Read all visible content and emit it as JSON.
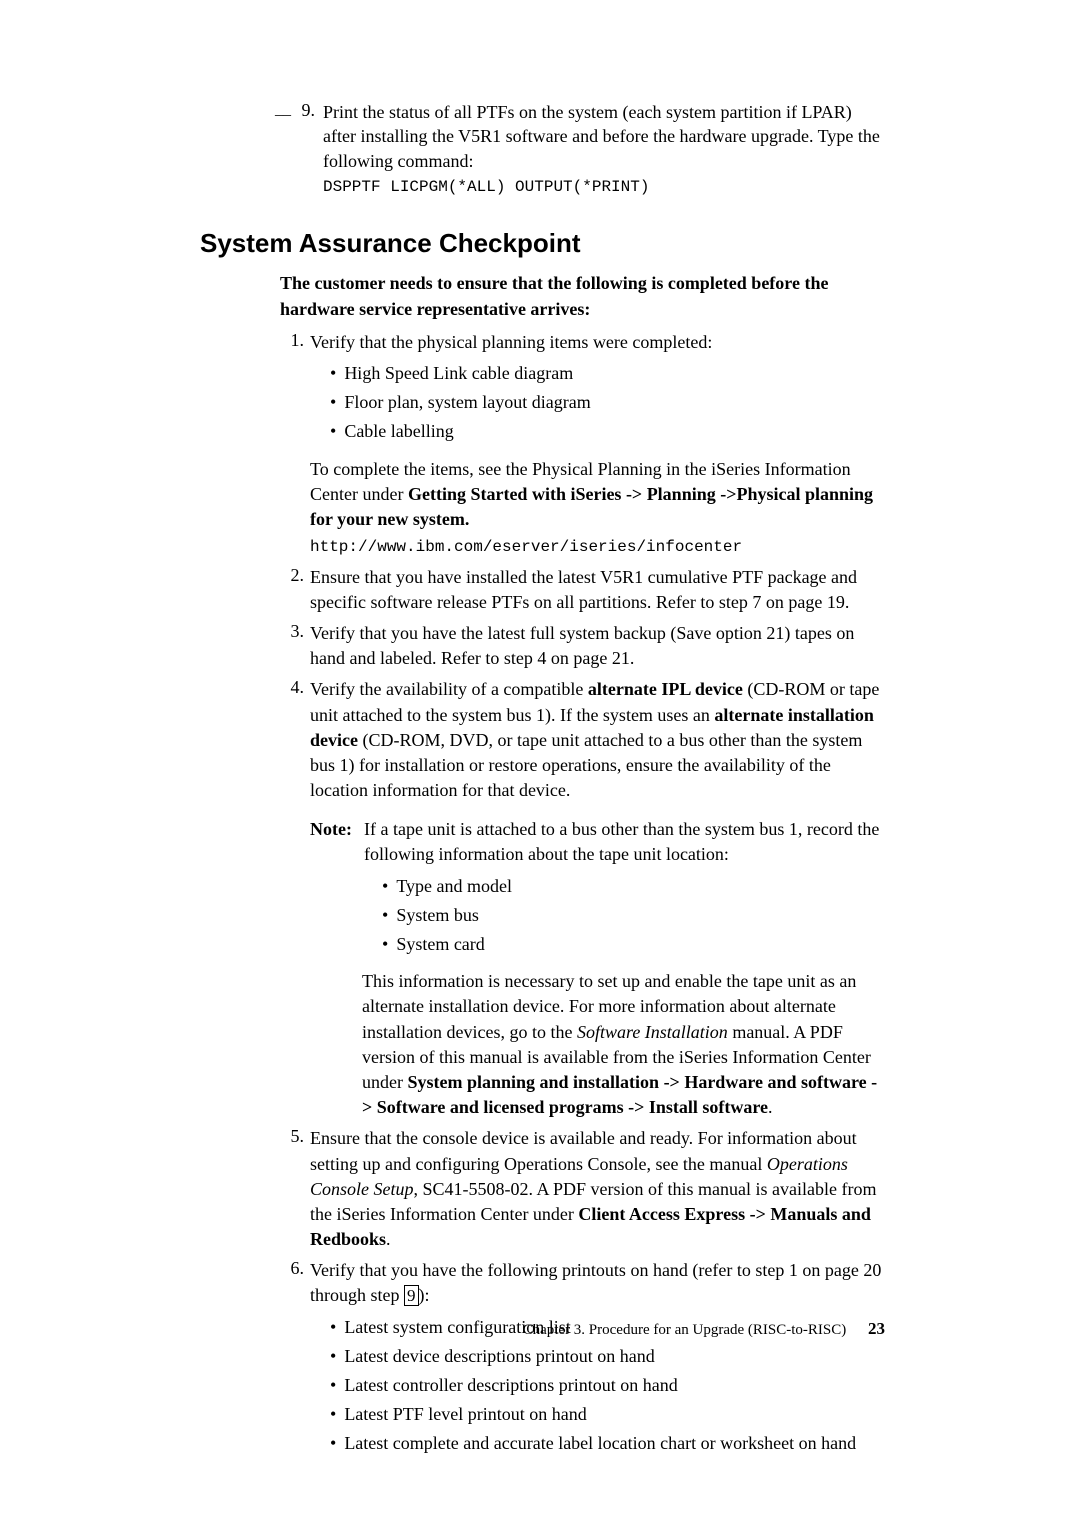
{
  "step9": {
    "checkbox": "__",
    "num": "9.",
    "text": "Print the status of all PTFs on the system (each system partition if LPAR) after installing the V5R1 software and before the hardware upgrade. Type the following command:",
    "command": "DSPPTF LICPGM(*ALL) OUTPUT(*PRINT)"
  },
  "heading": "System Assurance Checkpoint",
  "intro": "The customer needs to ensure that the following is completed before the hardware service representative arrives:",
  "items": {
    "i1": {
      "num": "1.",
      "text": "Verify that the physical planning items were completed:",
      "bullets": {
        "b1": "High Speed Link cable diagram",
        "b2": "Floor plan, system layout diagram",
        "b3": "Cable labelling"
      },
      "para_pre": "To complete the items, see the Physical Planning in the iSeries Information Center under ",
      "para_bold": "Getting Started with iSeries -> Planning ->Physical planning for your new system.",
      "url": "http://www.ibm.com/eserver/iseries/infocenter"
    },
    "i2": {
      "num": "2.",
      "text": "Ensure that you have installed the latest V5R1 cumulative PTF package and specific software release PTFs on all partitions. Refer to step 7 on page 19."
    },
    "i3": {
      "num": "3.",
      "text": "Verify that you have the latest full system backup (Save option 21) tapes on hand and labeled. Refer to step 4 on page 21."
    },
    "i4": {
      "num": "4.",
      "pre": "Verify the availability of a compatible ",
      "b1": "alternate IPL device",
      "mid1": " (CD-ROM or tape unit attached to the system bus 1). If the system uses an ",
      "b2": "alternate installation device",
      "post": " (CD-ROM, DVD, or tape unit attached to a bus other than the system bus 1) for installation or restore operations, ensure the availability of the location information for that device.",
      "note_label": "Note:",
      "note_text": "If a tape unit is attached to a bus other than the system bus 1, record the following information about the tape unit location:",
      "note_bullets": {
        "b1": "Type and model",
        "b2": "System bus",
        "b3": "System card"
      },
      "note_para_pre": "This information is necessary to set up and enable the tape unit as an alternate installation device. For more information about alternate installation devices, go to the ",
      "note_para_italic": "Software Installation",
      "note_para_mid": " manual. A PDF version of this manual is available from the iSeries Information Center under ",
      "note_para_bold": "System planning and installation -> Hardware and software -> Software and licensed programs -> Install software",
      "note_para_end": "."
    },
    "i5": {
      "num": "5.",
      "pre": "Ensure that the console device is available and ready. For information about setting up and configuring Operations Console, see the manual ",
      "italic": "Operations Console Setup",
      "mid": ", SC41-5508-02. A PDF version of this manual is available from the iSeries Information Center under ",
      "bold": "Client Access Express -> Manuals and Redbooks",
      "end": "."
    },
    "i6": {
      "num": "6.",
      "pre": "Verify that you have the following printouts on hand (refer to step 1 on page 20 through step ",
      "ref": "9",
      "post": "):",
      "bullets": {
        "b1": "Latest system configuration list",
        "b2": "Latest device descriptions printout on hand",
        "b3": "Latest controller descriptions printout on hand",
        "b4": "Latest PTF level printout on hand",
        "b5": "Latest complete and accurate label location chart or worksheet on hand"
      }
    }
  },
  "footer": {
    "chapter": "Chapter 3. Procedure for an Upgrade (RISC-to-RISC)",
    "page": "23"
  },
  "bullet_char": "•"
}
